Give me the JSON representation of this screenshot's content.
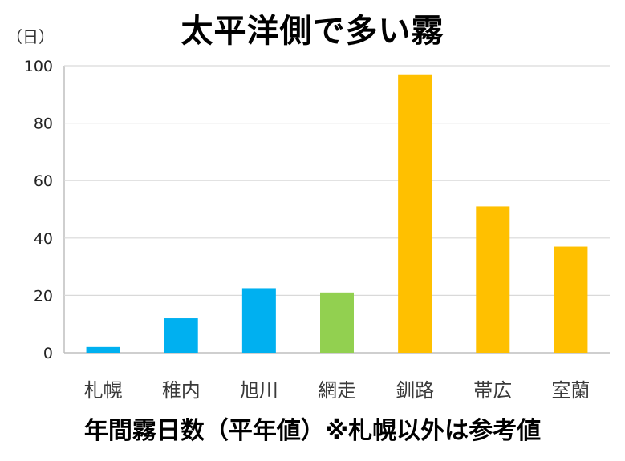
{
  "chart_data": {
    "type": "bar",
    "title": "太平洋側で多い霧",
    "ylabel": "（日）",
    "xlabel": "年間霧日数（平年値）※札幌以外は参考値",
    "categories": [
      "札幌",
      "稚内",
      "旭川",
      "網走",
      "釧路",
      "帯広",
      "室蘭"
    ],
    "values": [
      2,
      12,
      22.5,
      21,
      97,
      51,
      37
    ],
    "bar_colors": [
      "#00b0f0",
      "#00b0f0",
      "#00b0f0",
      "#92d050",
      "#ffc000",
      "#ffc000",
      "#ffc000"
    ],
    "ylim": [
      0,
      100
    ],
    "yticks": [
      0,
      20,
      40,
      60,
      80,
      100
    ],
    "grid": true,
    "legend": "none"
  },
  "colors": {
    "grid": "#d9d9d9",
    "axis": "#bfbfbf"
  }
}
